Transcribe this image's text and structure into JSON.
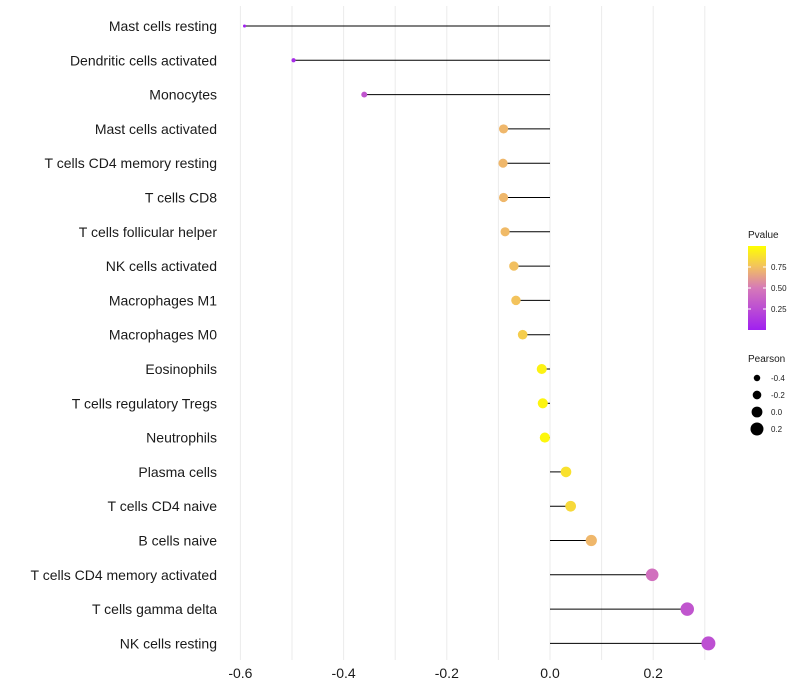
{
  "chart_data": {
    "type": "lollipop",
    "title": "",
    "xlabel": "",
    "ylabel": "",
    "xlim": [
      -0.605,
      0.31
    ],
    "x_ticks": [
      "-0.6",
      "-0.4",
      "-0.2",
      "0.0",
      "0.2"
    ],
    "categories": [
      "Mast cells resting",
      "Dendritic cells activated",
      "Monocytes",
      "Mast cells activated",
      "T cells CD4 memory resting",
      "T cells CD8",
      "T cells follicular helper",
      "NK cells activated",
      "Macrophages M1",
      "Macrophages M0",
      "Eosinophils",
      "T cells regulatory  Tregs ",
      "Neutrophils",
      "Plasma cells",
      "T cells CD4 naive",
      "B cells naive",
      "T cells CD4 memory activated",
      "T cells gamma delta",
      "NK cells resting"
    ],
    "pearson": [
      -0.592,
      -0.497,
      -0.36,
      -0.09,
      -0.091,
      -0.09,
      -0.087,
      -0.07,
      -0.066,
      -0.053,
      -0.016,
      -0.014,
      -0.01,
      0.031,
      0.04,
      0.08,
      0.198,
      0.266,
      0.307
    ],
    "pvalue": [
      0.01,
      0.07,
      0.3,
      0.72,
      0.72,
      0.72,
      0.73,
      0.75,
      0.76,
      0.8,
      0.95,
      0.96,
      0.97,
      0.88,
      0.85,
      0.72,
      0.45,
      0.3,
      0.27
    ],
    "legend": {
      "color_title": "Pvalue",
      "color_ticks": [
        "0.75",
        "0.50",
        "0.25"
      ],
      "color_tick_values": [
        0.75,
        0.5,
        0.25
      ],
      "color_range": [
        0.0,
        1.0
      ],
      "size_title": "Pearson",
      "size_ticks": [
        "-0.4",
        "-0.2",
        "0.0",
        "0.2"
      ],
      "size_tick_values": [
        -0.4,
        -0.2,
        0.0,
        0.2
      ]
    },
    "colors": {
      "low": "#A020F0",
      "high": "#FFFF00",
      "stem": "#000000",
      "grid": "#ebebeb"
    }
  }
}
